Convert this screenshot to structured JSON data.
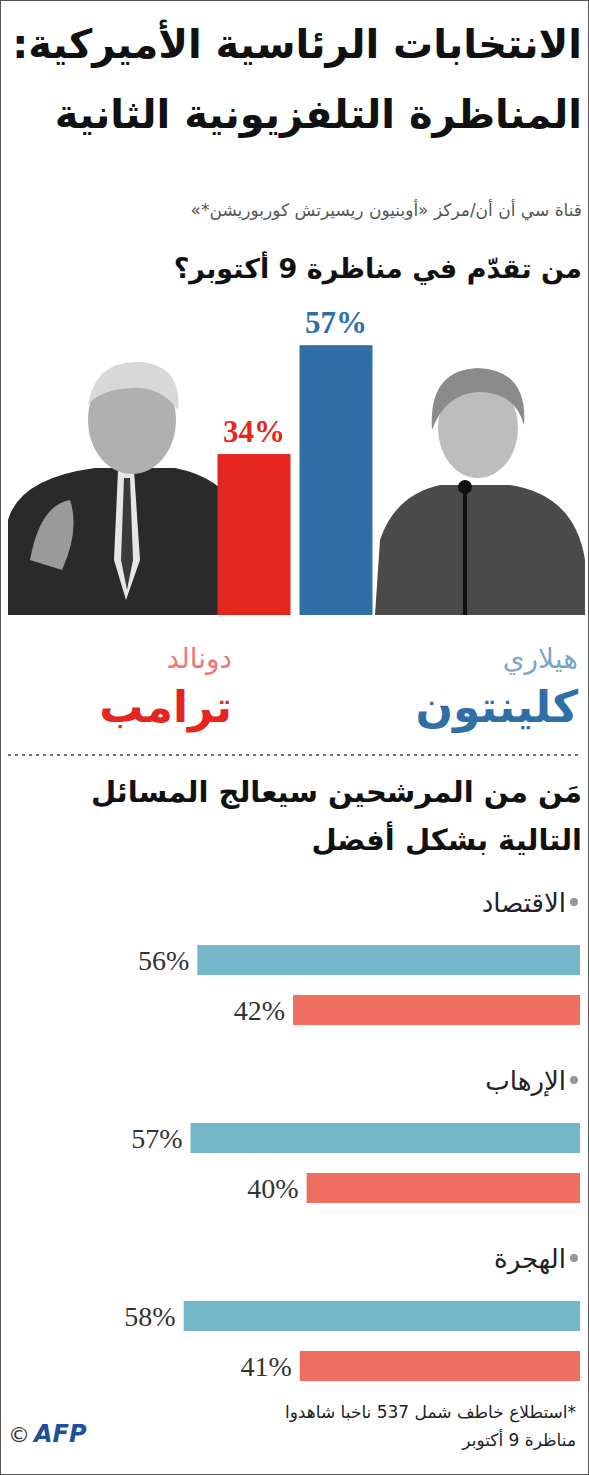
{
  "header": {
    "title": "الانتخابات الرئاسية الأميركية:",
    "subtitle": "المناظرة التلفزيونية الثانية",
    "source": "قناة سي أن أن/مركز «أوبنيون ريسيرتش كوربوريشن*»"
  },
  "chart_data": [
    {
      "type": "bar",
      "title": "من تقدّم في مناظرة 9 أكتوبر؟",
      "categories": [
        "دونالد ترامب",
        "هيلاري كلينتون"
      ],
      "values": [
        34,
        57
      ],
      "value_labels": [
        "34%",
        "57%"
      ],
      "colors": [
        "#e5261f",
        "#2f6fa6"
      ],
      "ylim": [
        0,
        60
      ],
      "tick_labels": false,
      "data_labels": true
    },
    {
      "type": "bar",
      "orientation": "horizontal",
      "title": "مَن من المرشحين سيعالج المسائل التالية بشكل أفضل",
      "categories": [
        "الاقتصاد",
        "الإرهاب",
        "الهجرة"
      ],
      "series": [
        {
          "color": "#74b7c9",
          "values": [
            56,
            57,
            58
          ],
          "value_labels": [
            "56%",
            "57%",
            "58%"
          ]
        },
        {
          "color": "#ee6f5f",
          "values": [
            42,
            40,
            41
          ],
          "value_labels": [
            "42%",
            "40%",
            "41%"
          ]
        }
      ],
      "xlim": [
        0,
        60
      ],
      "tick_labels": false,
      "data_labels": true
    }
  ],
  "footnote": "*استطلاع خاطف شمل 537 ناخبا شاهدوا مناظرة 9 أكتوبر",
  "credit": {
    "symbol": "©",
    "agency": "AFP"
  }
}
